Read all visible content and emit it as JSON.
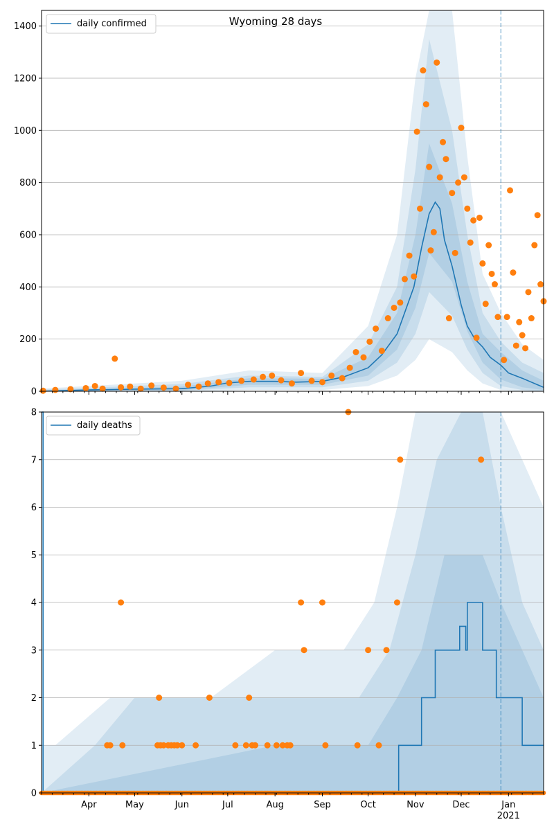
{
  "chart_data": [
    {
      "type": "line",
      "title": "Wyoming 28 days",
      "xlabel": "",
      "ylabel": "",
      "ylim": [
        0,
        1460
      ],
      "yticks": [
        0,
        200,
        400,
        600,
        800,
        1000,
        1200,
        1400
      ],
      "grid": "horizontal",
      "legend": {
        "placement": "top-left",
        "entries": [
          "daily confirmed"
        ]
      },
      "colors": {
        "line": "#1f77b4",
        "points": "#ff7f0e",
        "band": "#1f77b4",
        "forecast_marker": "#1f77b4"
      },
      "forecast_start": "2020-12-27",
      "series": [
        {
          "name": "daily confirmed",
          "kind": "line",
          "x": [
            "2020-03-01",
            "2020-04-01",
            "2020-05-01",
            "2020-06-01",
            "2020-06-20",
            "2020-07-01",
            "2020-07-15",
            "2020-08-01",
            "2020-08-15",
            "2020-09-01",
            "2020-09-15",
            "2020-10-01",
            "2020-10-10",
            "2020-10-20",
            "2020-10-31",
            "2020-11-05",
            "2020-11-10",
            "2020-11-14",
            "2020-11-17",
            "2020-11-20",
            "2020-11-25",
            "2020-12-01",
            "2020-12-05",
            "2020-12-10",
            "2020-12-15",
            "2020-12-20",
            "2020-12-27",
            "2021-01-01",
            "2021-01-10",
            "2021-01-20",
            "2021-01-24"
          ],
          "y": [
            0,
            5,
            8,
            10,
            20,
            32,
            38,
            38,
            35,
            38,
            55,
            90,
            140,
            220,
            400,
            550,
            680,
            725,
            700,
            580,
            480,
            330,
            250,
            200,
            170,
            130,
            100,
            70,
            50,
            25,
            15
          ]
        },
        {
          "name": "band-outer",
          "kind": "band",
          "x": [
            "2020-03-01",
            "2020-06-01",
            "2020-07-15",
            "2020-09-01",
            "2020-10-01",
            "2020-10-20",
            "2020-11-01",
            "2020-11-10",
            "2020-11-25",
            "2020-12-05",
            "2020-12-15",
            "2020-12-27",
            "2021-01-10",
            "2021-01-24"
          ],
          "low": [
            0,
            0,
            5,
            5,
            20,
            60,
            120,
            200,
            150,
            80,
            30,
            5,
            0,
            0
          ],
          "high": [
            10,
            40,
            80,
            70,
            250,
            600,
            1200,
            1800,
            1500,
            900,
            450,
            300,
            180,
            120
          ]
        },
        {
          "name": "band-mid",
          "kind": "band",
          "x": [
            "2020-03-01",
            "2020-06-01",
            "2020-07-15",
            "2020-09-01",
            "2020-10-01",
            "2020-10-20",
            "2020-11-01",
            "2020-11-10",
            "2020-11-25",
            "2020-12-05",
            "2020-12-15",
            "2020-12-27",
            "2021-01-10",
            "2021-01-24"
          ],
          "low": [
            0,
            2,
            15,
            15,
            40,
            110,
            220,
            380,
            290,
            160,
            70,
            20,
            5,
            0
          ],
          "high": [
            6,
            28,
            60,
            55,
            180,
            400,
            850,
            1350,
            1000,
            600,
            300,
            190,
            110,
            70
          ]
        },
        {
          "name": "band-inner",
          "kind": "band",
          "x": [
            "2020-03-01",
            "2020-06-01",
            "2020-07-15",
            "2020-09-01",
            "2020-10-01",
            "2020-10-20",
            "2020-11-01",
            "2020-11-10",
            "2020-11-25",
            "2020-12-05",
            "2020-12-15",
            "2020-12-27",
            "2021-01-10",
            "2021-01-24"
          ],
          "low": [
            0,
            4,
            25,
            25,
            60,
            160,
            320,
            530,
            420,
            230,
            110,
            45,
            15,
            5
          ],
          "high": [
            3,
            18,
            50,
            48,
            130,
            300,
            600,
            950,
            720,
            420,
            220,
            150,
            80,
            40
          ]
        },
        {
          "name": "reported",
          "kind": "scatter",
          "x": [
            "2020-03-02",
            "2020-03-10",
            "2020-03-20",
            "2020-03-30",
            "2020-04-05",
            "2020-04-10",
            "2020-04-18",
            "2020-04-22",
            "2020-04-28",
            "2020-05-05",
            "2020-05-12",
            "2020-05-20",
            "2020-05-28",
            "2020-06-05",
            "2020-06-12",
            "2020-06-18",
            "2020-06-25",
            "2020-07-02",
            "2020-07-10",
            "2020-07-18",
            "2020-07-24",
            "2020-07-30",
            "2020-08-05",
            "2020-08-12",
            "2020-08-18",
            "2020-08-25",
            "2020-09-01",
            "2020-09-07",
            "2020-09-14",
            "2020-09-19",
            "2020-09-23",
            "2020-09-28",
            "2020-10-02",
            "2020-10-06",
            "2020-10-10",
            "2020-10-14",
            "2020-10-18",
            "2020-10-22",
            "2020-10-25",
            "2020-10-28",
            "2020-10-31",
            "2020-11-02",
            "2020-11-04",
            "2020-11-06",
            "2020-11-08",
            "2020-11-10",
            "2020-11-11",
            "2020-11-13",
            "2020-11-15",
            "2020-11-17",
            "2020-11-19",
            "2020-11-21",
            "2020-11-23",
            "2020-11-25",
            "2020-11-27",
            "2020-11-29",
            "2020-12-01",
            "2020-12-03",
            "2020-12-05",
            "2020-12-07",
            "2020-12-09",
            "2020-12-11",
            "2020-12-13",
            "2020-12-15",
            "2020-12-17",
            "2020-12-19",
            "2020-12-21",
            "2020-12-23",
            "2020-12-25",
            "2020-12-29",
            "2020-12-31",
            "2021-01-02",
            "2021-01-04",
            "2021-01-06",
            "2021-01-08",
            "2021-01-10",
            "2021-01-12",
            "2021-01-14",
            "2021-01-16",
            "2021-01-18",
            "2021-01-20",
            "2021-01-22",
            "2021-01-24"
          ],
          "y": [
            2,
            5,
            8,
            12,
            20,
            10,
            125,
            15,
            18,
            10,
            22,
            14,
            10,
            25,
            18,
            30,
            35,
            32,
            40,
            45,
            55,
            60,
            42,
            30,
            70,
            40,
            35,
            60,
            50,
            90,
            150,
            130,
            190,
            240,
            155,
            280,
            320,
            340,
            430,
            520,
            440,
            995,
            700,
            1230,
            1100,
            860,
            540,
            610,
            1260,
            820,
            955,
            890,
            280,
            760,
            530,
            800,
            1010,
            820,
            700,
            570,
            655,
            205,
            665,
            490,
            335,
            560,
            450,
            410,
            285,
            120,
            285,
            770,
            455,
            175,
            265,
            215,
            165,
            380,
            280,
            560,
            675,
            410,
            345
          ]
        }
      ]
    },
    {
      "type": "line",
      "title": "",
      "xlabel": "",
      "ylabel": "",
      "ylim": [
        0,
        8
      ],
      "yticks": [
        0,
        1,
        2,
        3,
        4,
        5,
        6,
        7,
        8
      ],
      "xticks": [
        "Apr",
        "May",
        "Jun",
        "Jul",
        "Aug",
        "Sep",
        "Oct",
        "Nov",
        "Dec",
        "Jan"
      ],
      "xtick_year": "2021",
      "grid": "horizontal",
      "legend": {
        "placement": "top-left",
        "entries": [
          "daily deaths"
        ]
      },
      "forecast_start": "2020-12-27",
      "series": [
        {
          "name": "daily deaths",
          "kind": "step",
          "x": [
            "2020-03-01",
            "2020-03-02",
            "2020-10-20",
            "2020-10-21",
            "2020-11-01",
            "2020-11-05",
            "2020-11-14",
            "2020-11-29",
            "2020-11-30",
            "2020-12-04",
            "2020-12-05",
            "2020-12-15",
            "2020-12-22",
            "2020-12-24",
            "2020-12-27",
            "2021-01-06",
            "2021-01-10",
            "2021-01-24"
          ],
          "y": [
            8,
            0,
            0,
            1,
            1,
            2,
            3,
            3,
            3.5,
            3,
            4,
            3,
            3,
            2,
            2,
            2,
            1,
            1
          ]
        },
        {
          "name": "band-outer",
          "kind": "band",
          "x": [
            "2020-03-01",
            "2020-03-10",
            "2020-04-15",
            "2020-06-20",
            "2020-08-01",
            "2020-09-15",
            "2020-10-05",
            "2020-10-20",
            "2020-11-01",
            "2020-11-15",
            "2020-12-01",
            "2020-12-15",
            "2020-12-27",
            "2021-01-10",
            "2021-01-24"
          ],
          "low": [
            0,
            0,
            0,
            0,
            0,
            0,
            0,
            0,
            0,
            0,
            0,
            0,
            0,
            0,
            0
          ],
          "high": [
            1,
            1,
            2,
            2,
            3,
            3,
            4,
            6,
            8,
            8,
            8,
            8,
            8,
            7,
            6
          ]
        },
        {
          "name": "band-mid",
          "kind": "band",
          "x": [
            "2020-03-01",
            "2020-04-05",
            "2020-05-01",
            "2020-07-01",
            "2020-08-15",
            "2020-09-25",
            "2020-10-15",
            "2020-11-01",
            "2020-11-15",
            "2020-12-01",
            "2020-12-15",
            "2020-12-27",
            "2021-01-10",
            "2021-01-24"
          ],
          "low": [
            0,
            0,
            0,
            0,
            0,
            0,
            0,
            0,
            0,
            0,
            0,
            0,
            0,
            0
          ],
          "high": [
            0,
            1,
            2,
            2,
            2,
            2,
            3,
            5,
            7,
            8,
            8,
            6,
            4,
            3
          ]
        },
        {
          "name": "band-inner",
          "kind": "band",
          "x": [
            "2020-03-01",
            "2020-08-01",
            "2020-10-01",
            "2020-10-20",
            "2020-11-05",
            "2020-11-20",
            "2020-12-01",
            "2020-12-15",
            "2020-12-27",
            "2021-01-10",
            "2021-01-24"
          ],
          "low": [
            0,
            0,
            0,
            0,
            0,
            0,
            0,
            0,
            0,
            0,
            0
          ],
          "high": [
            0,
            1,
            1,
            2,
            3,
            5,
            5,
            5,
            4,
            3,
            2
          ]
        },
        {
          "name": "reported",
          "kind": "scatter",
          "x": [
            "2020-04-13",
            "2020-04-15",
            "2020-04-22",
            "2020-04-23",
            "2020-05-16",
            "2020-05-17",
            "2020-05-18",
            "2020-05-20",
            "2020-05-23",
            "2020-05-25",
            "2020-05-27",
            "2020-05-29",
            "2020-06-01",
            "2020-06-10",
            "2020-06-19",
            "2020-07-06",
            "2020-07-13",
            "2020-07-15",
            "2020-07-17",
            "2020-07-19",
            "2020-07-27",
            "2020-08-02",
            "2020-08-06",
            "2020-08-09",
            "2020-08-11",
            "2020-08-18",
            "2020-08-20",
            "2020-09-01",
            "2020-09-03",
            "2020-09-18",
            "2020-09-24",
            "2020-10-01",
            "2020-10-08",
            "2020-10-13",
            "2020-10-20",
            "2020-10-22",
            "2020-12-14"
          ],
          "y": [
            1,
            1,
            4,
            1,
            1,
            2,
            1,
            1,
            1,
            1,
            1,
            1,
            1,
            1,
            2,
            1,
            1,
            2,
            1,
            1,
            1,
            1,
            1,
            1,
            1,
            4,
            3,
            4,
            1,
            8,
            1,
            3,
            1,
            3,
            4,
            7,
            7
          ],
          "zeros_daily": true
        }
      ]
    }
  ]
}
